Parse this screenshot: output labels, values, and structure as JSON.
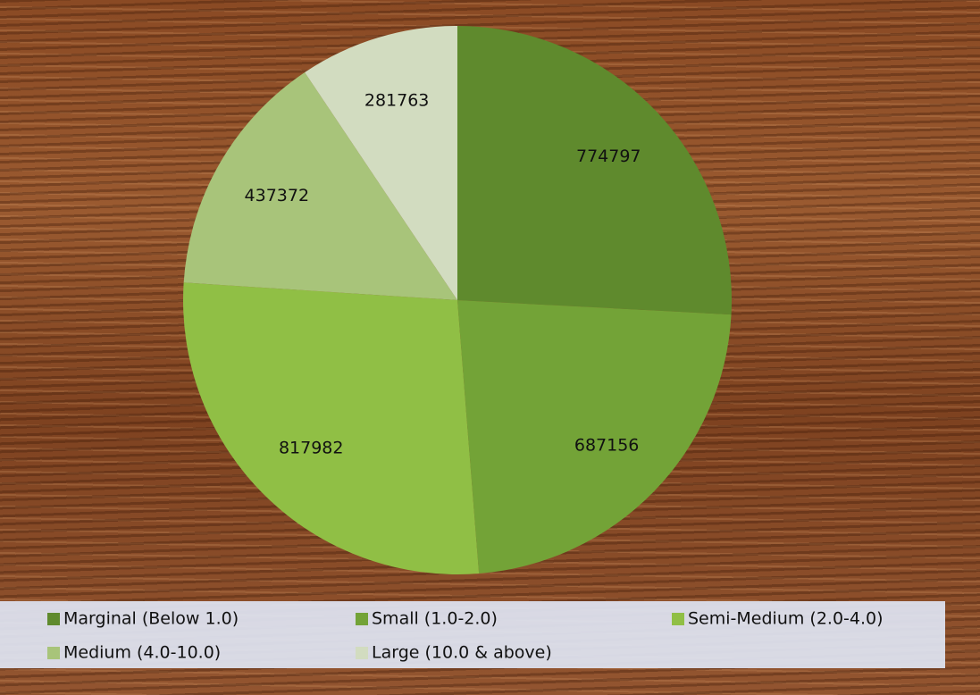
{
  "chart_data": {
    "type": "pie",
    "categories": [
      "Marginal (Below 1.0)",
      "Small (1.0-2.0)",
      "Semi-Medium (2.0-4.0)",
      "Medium (4.0-10.0)",
      "Large (10.0 & above)"
    ],
    "values": [
      774797,
      687156,
      817982,
      437372,
      281763
    ],
    "colors": [
      "#5f8a2d",
      "#73a337",
      "#90bf45",
      "#a8c47a",
      "#d2dcc0"
    ],
    "legend": "bottom"
  }
}
